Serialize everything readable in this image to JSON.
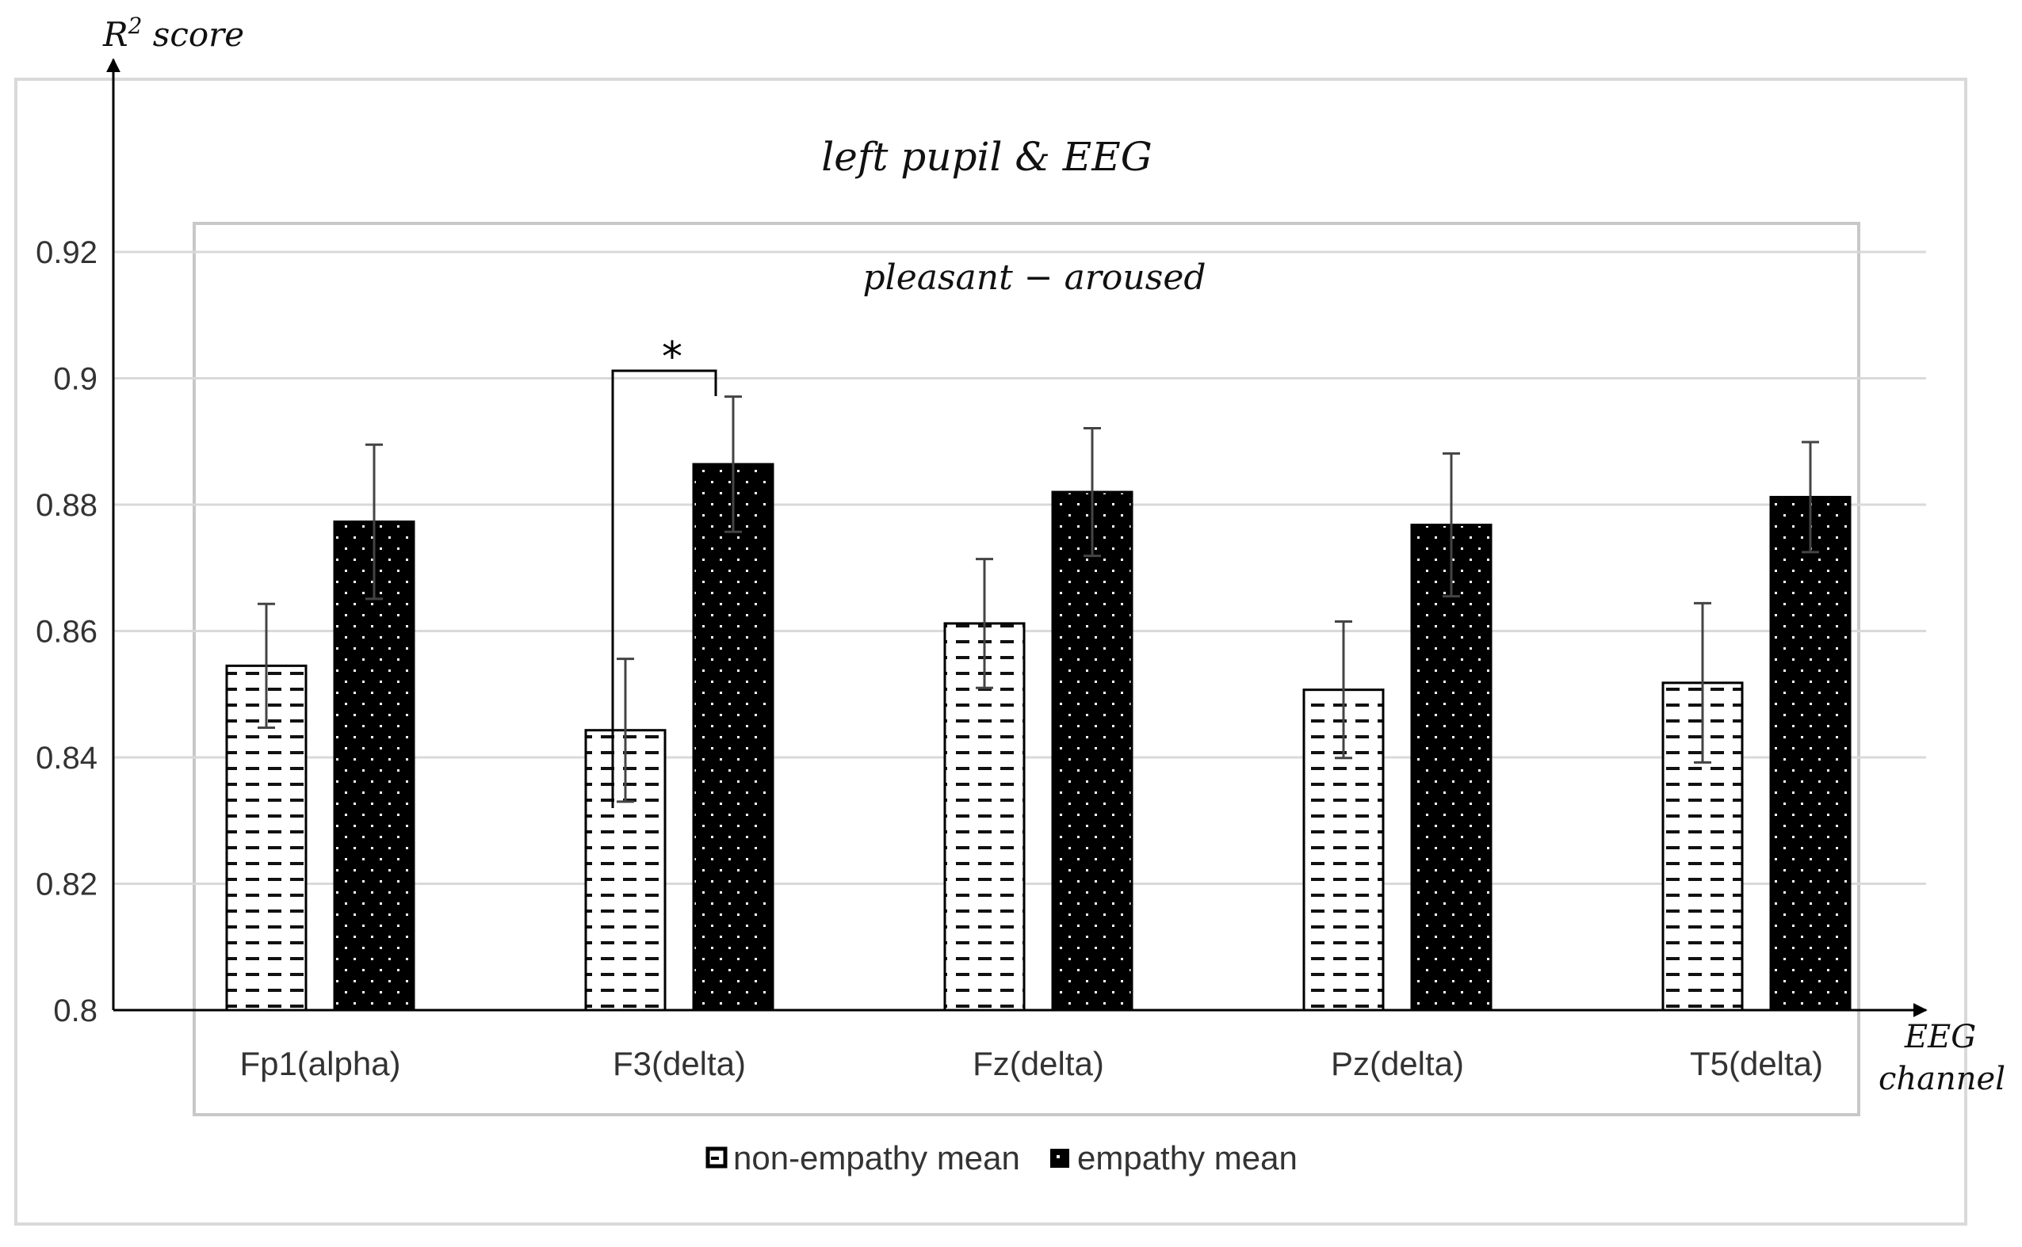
{
  "chart_data": {
    "type": "bar",
    "title": "left pupil & EEG",
    "subtitle": "pleasant − aroused",
    "ylabel_main": "R",
    "ylabel_sup": "2",
    "ylabel_rest": " score",
    "xlabel_line1": "EEG",
    "xlabel_line2": "channel",
    "categories": [
      "Fp1(alpha)",
      "F3(delta)",
      "Fz(delta)",
      "Pz(delta)",
      "T5(delta)"
    ],
    "ylim": [
      0.8,
      0.92
    ],
    "yticks": [
      0.8,
      0.82,
      0.84,
      0.86,
      0.88,
      0.9,
      0.92
    ],
    "ytick_labels": [
      "0.8",
      "0.82",
      "0.84",
      "0.86",
      "0.88",
      "0.9",
      "0.92"
    ],
    "grid": true,
    "legend_position": "bottom",
    "series": [
      {
        "name": "non-empathy mean",
        "values": [
          0.8545,
          0.8443,
          0.8612,
          0.8507,
          0.8518
        ],
        "errors": [
          0.0098,
          0.0113,
          0.0102,
          0.0108,
          0.0126
        ],
        "pattern": "dashes-on-white"
      },
      {
        "name": "empathy mean",
        "values": [
          0.8773,
          0.8864,
          0.882,
          0.8768,
          0.8812
        ],
        "errors": [
          0.0122,
          0.0107,
          0.0101,
          0.0113,
          0.0087
        ],
        "pattern": "dots-on-black"
      }
    ],
    "annotations": [
      {
        "text": "*",
        "category": "F3(delta)",
        "meaning": "significance bracket between series"
      }
    ]
  }
}
